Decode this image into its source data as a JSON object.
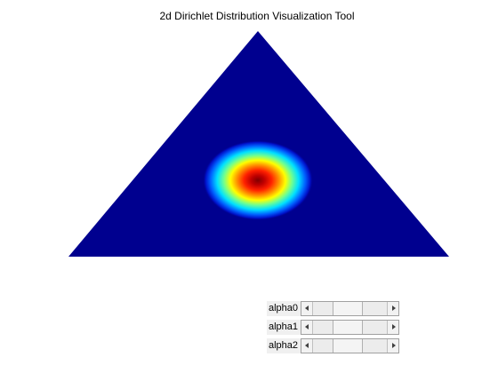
{
  "window": {
    "title": "2d Dirichlet Distribution Visualization Tool"
  },
  "plot": {
    "type": "heatmap",
    "colormap": "jet",
    "background_color": "#00008f",
    "peak_color": "#800000",
    "density_peak_barycentric": [
      0.4,
      0.3,
      0.3
    ]
  },
  "controls": [
    {
      "label": "alpha0",
      "value_fraction": 0.45
    },
    {
      "label": "alpha1",
      "value_fraction": 0.45
    },
    {
      "label": "alpha2",
      "value_fraction": 0.45
    }
  ],
  "icons": {
    "left_arrow": "left-arrow-icon",
    "right_arrow": "right-arrow-icon"
  }
}
